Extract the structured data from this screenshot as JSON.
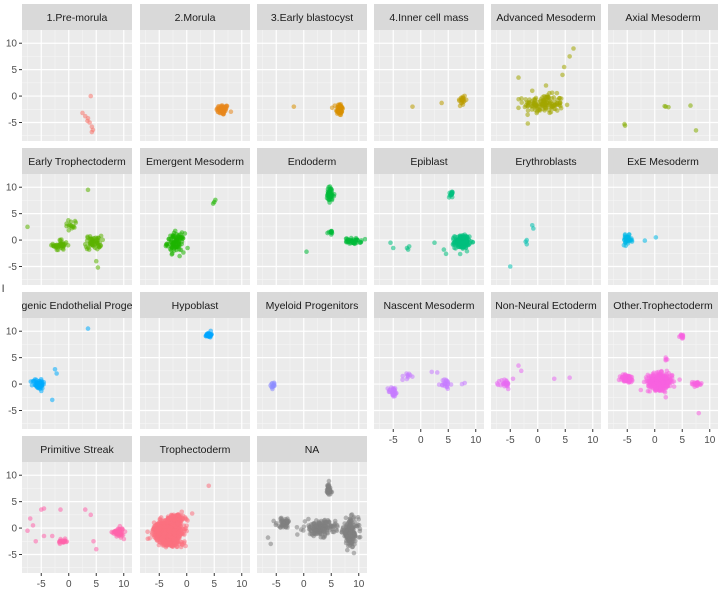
{
  "chart_data": {
    "type": "scatter",
    "facet_layout": "wrap",
    "ncol": 6,
    "shared_xlim": [
      -8.5,
      11.5
    ],
    "shared_ylim": [
      -8.5,
      12.5
    ],
    "x_ticks": [
      -5,
      0,
      5,
      10
    ],
    "y_ticks": [
      -5,
      0,
      5,
      10
    ],
    "grid": true,
    "panel_background": "#ebebeb",
    "strip_background": "#d9d9d9",
    "ylabel": "l",
    "facets": [
      {
        "label": "1.Pre-morula",
        "color": "#F8766D",
        "points": [
          [
            4,
            0
          ],
          [
            2.5,
            -3.2
          ],
          [
            3,
            -3.8
          ],
          [
            3.5,
            -4.2
          ],
          [
            3.8,
            -5
          ],
          [
            4.2,
            -5.8
          ],
          [
            4.4,
            -6.4
          ],
          [
            4.2,
            -6.8
          ],
          [
            3.4,
            -4.7
          ]
        ]
      },
      {
        "label": "2.Morula",
        "color": "#E7861B",
        "clusters": [
          {
            "cx": 6.5,
            "cy": -2.6,
            "sx": 1.0,
            "sy": 0.9,
            "n": 60
          }
        ]
      },
      {
        "label": "3.Early blastocyst",
        "color": "#D89000",
        "points": [
          [
            -1.8,
            -2
          ]
        ],
        "clusters": [
          {
            "cx": 6.5,
            "cy": -2.5,
            "sx": 0.6,
            "sy": 1.1,
            "n": 55
          }
        ]
      },
      {
        "label": "4.Inner cell mass",
        "color": "#BB9D00",
        "points": [
          [
            -1.5,
            -2
          ],
          [
            3.8,
            -1.3
          ]
        ],
        "clusters": [
          {
            "cx": 7.5,
            "cy": -0.8,
            "sx": 0.6,
            "sy": 1.1,
            "n": 20
          }
        ]
      },
      {
        "label": "Advanced Mesoderm",
        "color": "#A3A500",
        "points": [
          [
            6.5,
            9
          ],
          [
            5.8,
            7.5
          ],
          [
            4.8,
            5.5
          ],
          [
            4.5,
            4
          ],
          [
            -3.5,
            3.5
          ],
          [
            -1,
            1
          ],
          [
            1.5,
            2
          ]
        ],
        "clusters": [
          {
            "cx": 1,
            "cy": -1.5,
            "sx": 3.3,
            "sy": 1.6,
            "n": 130
          }
        ]
      },
      {
        "label": "Axial Mesoderm",
        "color": "#85AD00",
        "points": [
          [
            -5.5,
            -5.3
          ],
          [
            -5.4,
            -5.6
          ],
          [
            2,
            -2
          ],
          [
            2.5,
            -2.1
          ],
          [
            1.8,
            -1.9
          ],
          [
            6.5,
            -1.8
          ],
          [
            7.5,
            -6.5
          ]
        ]
      },
      {
        "label": "Early Trophectoderm",
        "color": "#5BB300",
        "points": [
          [
            3.5,
            9.5
          ],
          [
            -7.5,
            2.5
          ],
          [
            5,
            -4
          ],
          [
            5.3,
            -5.2
          ]
        ],
        "clusters": [
          {
            "cx": -1.5,
            "cy": -1,
            "sx": 1.2,
            "sy": 1,
            "n": 40
          },
          {
            "cx": 0.5,
            "cy": 3,
            "sx": 1.2,
            "sy": 0.9,
            "n": 15
          },
          {
            "cx": 4.5,
            "cy": -0.5,
            "sx": 1.3,
            "sy": 1.2,
            "n": 55
          }
        ]
      },
      {
        "label": "Emergent Mesoderm",
        "color": "#1EB400",
        "points": [
          [
            5,
            7.2
          ],
          [
            5.2,
            7.6
          ],
          [
            4.8,
            6.9
          ]
        ],
        "clusters": [
          {
            "cx": -2,
            "cy": -0.5,
            "sx": 1.4,
            "sy": 1.6,
            "n": 90
          }
        ]
      },
      {
        "label": "Endoderm",
        "color": "#00BA38",
        "points": [
          [
            0.5,
            -2.2
          ]
        ],
        "clusters": [
          {
            "cx": 4.8,
            "cy": 8.5,
            "sx": 0.7,
            "sy": 1.5,
            "n": 45
          },
          {
            "cx": 5,
            "cy": 1.5,
            "sx": 0.6,
            "sy": 0.3,
            "n": 10
          },
          {
            "cx": 9,
            "cy": -0.2,
            "sx": 1.3,
            "sy": 0.5,
            "n": 40
          }
        ]
      },
      {
        "label": "Epiblast",
        "color": "#00BF7D",
        "points": [
          [
            -5.5,
            -0.5
          ],
          [
            -5,
            -1.5
          ],
          [
            -2.5,
            -1.5
          ],
          [
            -2.1,
            -1.2
          ],
          [
            -2.3,
            -1.8
          ],
          [
            2.5,
            -0.5
          ],
          [
            4.6,
            -2.6
          ],
          [
            4.2,
            -1.8
          ]
        ],
        "clusters": [
          {
            "cx": 5.5,
            "cy": 8.8,
            "sx": 0.3,
            "sy": 0.7,
            "n": 15
          },
          {
            "cx": 7.5,
            "cy": -0.3,
            "sx": 1.2,
            "sy": 1.1,
            "n": 190
          }
        ]
      },
      {
        "label": "Erythroblasts",
        "color": "#00BFAE",
        "points": [
          [
            -5,
            -5
          ],
          [
            -1,
            2.8
          ],
          [
            -0.8,
            2.2
          ],
          [
            -2,
            0
          ],
          [
            -2,
            -0.8
          ],
          [
            -2.2,
            -0.3
          ]
        ]
      },
      {
        "label": "ExE Mesoderm",
        "color": "#00B8E5",
        "points": [
          [
            0.2,
            0.5
          ],
          [
            -1.8,
            -0.1
          ]
        ],
        "clusters": [
          {
            "cx": -5,
            "cy": 0,
            "sx": 0.7,
            "sy": 0.8,
            "n": 40
          }
        ]
      },
      {
        "label": "Haematogenic Endothelial Progenitors",
        "display_label": "ogenic Endothelial Progen",
        "color": "#00ABFD",
        "points": [
          [
            3.5,
            10.5
          ],
          [
            -2.5,
            2.8
          ],
          [
            -2.2,
            2
          ],
          [
            -3,
            -3
          ]
        ],
        "clusters": [
          {
            "cx": -5.5,
            "cy": 0,
            "sx": 1,
            "sy": 0.9,
            "n": 60
          }
        ]
      },
      {
        "label": "Hypoblast",
        "color": "#00A5FF",
        "clusters": [
          {
            "cx": 4,
            "cy": 9.3,
            "sx": 0.4,
            "sy": 0.4,
            "n": 40
          }
        ]
      },
      {
        "label": "Myeloid Progenitors",
        "color": "#8C8CFF",
        "clusters": [
          {
            "cx": -5.5,
            "cy": -0.2,
            "sx": 0.5,
            "sy": 0.6,
            "n": 12
          }
        ]
      },
      {
        "label": "Nascent Mesoderm",
        "color": "#C77CFF",
        "points": [
          [
            7.5,
            0
          ],
          [
            8,
            0.2
          ],
          [
            3,
            2.2
          ],
          [
            2,
            2.3
          ]
        ],
        "clusters": [
          {
            "cx": -5,
            "cy": -1.5,
            "sx": 0.8,
            "sy": 0.9,
            "n": 30
          },
          {
            "cx": -2.5,
            "cy": 1.5,
            "sx": 0.8,
            "sy": 0.8,
            "n": 10
          },
          {
            "cx": 4.5,
            "cy": 0,
            "sx": 0.8,
            "sy": 0.9,
            "n": 20
          }
        ]
      },
      {
        "label": "Non-Neural Ectoderm",
        "color": "#E76BF3",
        "points": [
          [
            -3.5,
            3.5
          ],
          [
            -3,
            2.5
          ],
          [
            -4.5,
            1
          ],
          [
            3,
            1
          ],
          [
            5.8,
            1.2
          ]
        ],
        "clusters": [
          {
            "cx": -6,
            "cy": 0,
            "sx": 0.8,
            "sy": 0.9,
            "n": 25
          }
        ]
      },
      {
        "label": "Other.Trophectoderm",
        "color": "#F763E0",
        "points": [
          [
            8,
            -5.5
          ],
          [
            2,
            -2.5
          ]
        ],
        "clusters": [
          {
            "cx": -5,
            "cy": 1,
            "sx": 1.2,
            "sy": 0.7,
            "n": 60
          },
          {
            "cx": 5,
            "cy": 9,
            "sx": 0.4,
            "sy": 0.4,
            "n": 12
          },
          {
            "cx": 2,
            "cy": 4.8,
            "sx": 0.3,
            "sy": 0.3,
            "n": 4
          },
          {
            "cx": 1,
            "cy": 0.5,
            "sx": 2.0,
            "sy": 1.4,
            "n": 320
          },
          {
            "cx": 7.5,
            "cy": 0,
            "sx": 1,
            "sy": 0.4,
            "n": 25
          }
        ]
      },
      {
        "label": "Primitive Streak",
        "color": "#FF65AC",
        "points": [
          [
            -7,
            1.8
          ],
          [
            -6.5,
            0.5
          ],
          [
            -7.5,
            -0.5
          ],
          [
            -6,
            -2.5
          ],
          [
            -5,
            3.5
          ],
          [
            -4.5,
            3.7
          ],
          [
            -1.5,
            3.5
          ],
          [
            3,
            3.5
          ],
          [
            4,
            2.5
          ],
          [
            -4.5,
            -1.5
          ],
          [
            -3,
            -1.5
          ],
          [
            4.5,
            -2.5
          ],
          [
            5,
            -4
          ]
        ],
        "clusters": [
          {
            "cx": -1,
            "cy": -2.5,
            "sx": 0.8,
            "sy": 0.5,
            "n": 20
          },
          {
            "cx": 9,
            "cy": -0.8,
            "sx": 0.9,
            "sy": 0.8,
            "n": 55
          }
        ]
      },
      {
        "label": "Trophectoderm",
        "color": "#FC717F",
        "points": [
          [
            4,
            8
          ]
        ],
        "clusters": [
          {
            "cx": -3.5,
            "cy": -0.5,
            "sx": 2.2,
            "sy": 1.5,
            "n": 700
          },
          {
            "cx": -2,
            "cy": 1.8,
            "sx": 1.5,
            "sy": 0.8,
            "n": 120
          },
          {
            "cx": -3,
            "cy": -2.8,
            "sx": 2,
            "sy": 0.8,
            "n": 120
          }
        ]
      },
      {
        "label": "NA",
        "color": "#7F7F7F",
        "points": [
          [
            -6,
            -3
          ],
          [
            -6.5,
            -1.8
          ]
        ],
        "clusters": [
          {
            "cx": 3,
            "cy": 0,
            "sx": 2.5,
            "sy": 1.3,
            "n": 160
          },
          {
            "cx": -3.5,
            "cy": 1,
            "sx": 1.3,
            "sy": 0.8,
            "n": 50
          },
          {
            "cx": 4.5,
            "cy": 7.2,
            "sx": 0.5,
            "sy": 1.2,
            "n": 40
          },
          {
            "cx": 8.5,
            "cy": -0.8,
            "sx": 1.3,
            "sy": 2.3,
            "n": 150
          }
        ]
      }
    ]
  }
}
